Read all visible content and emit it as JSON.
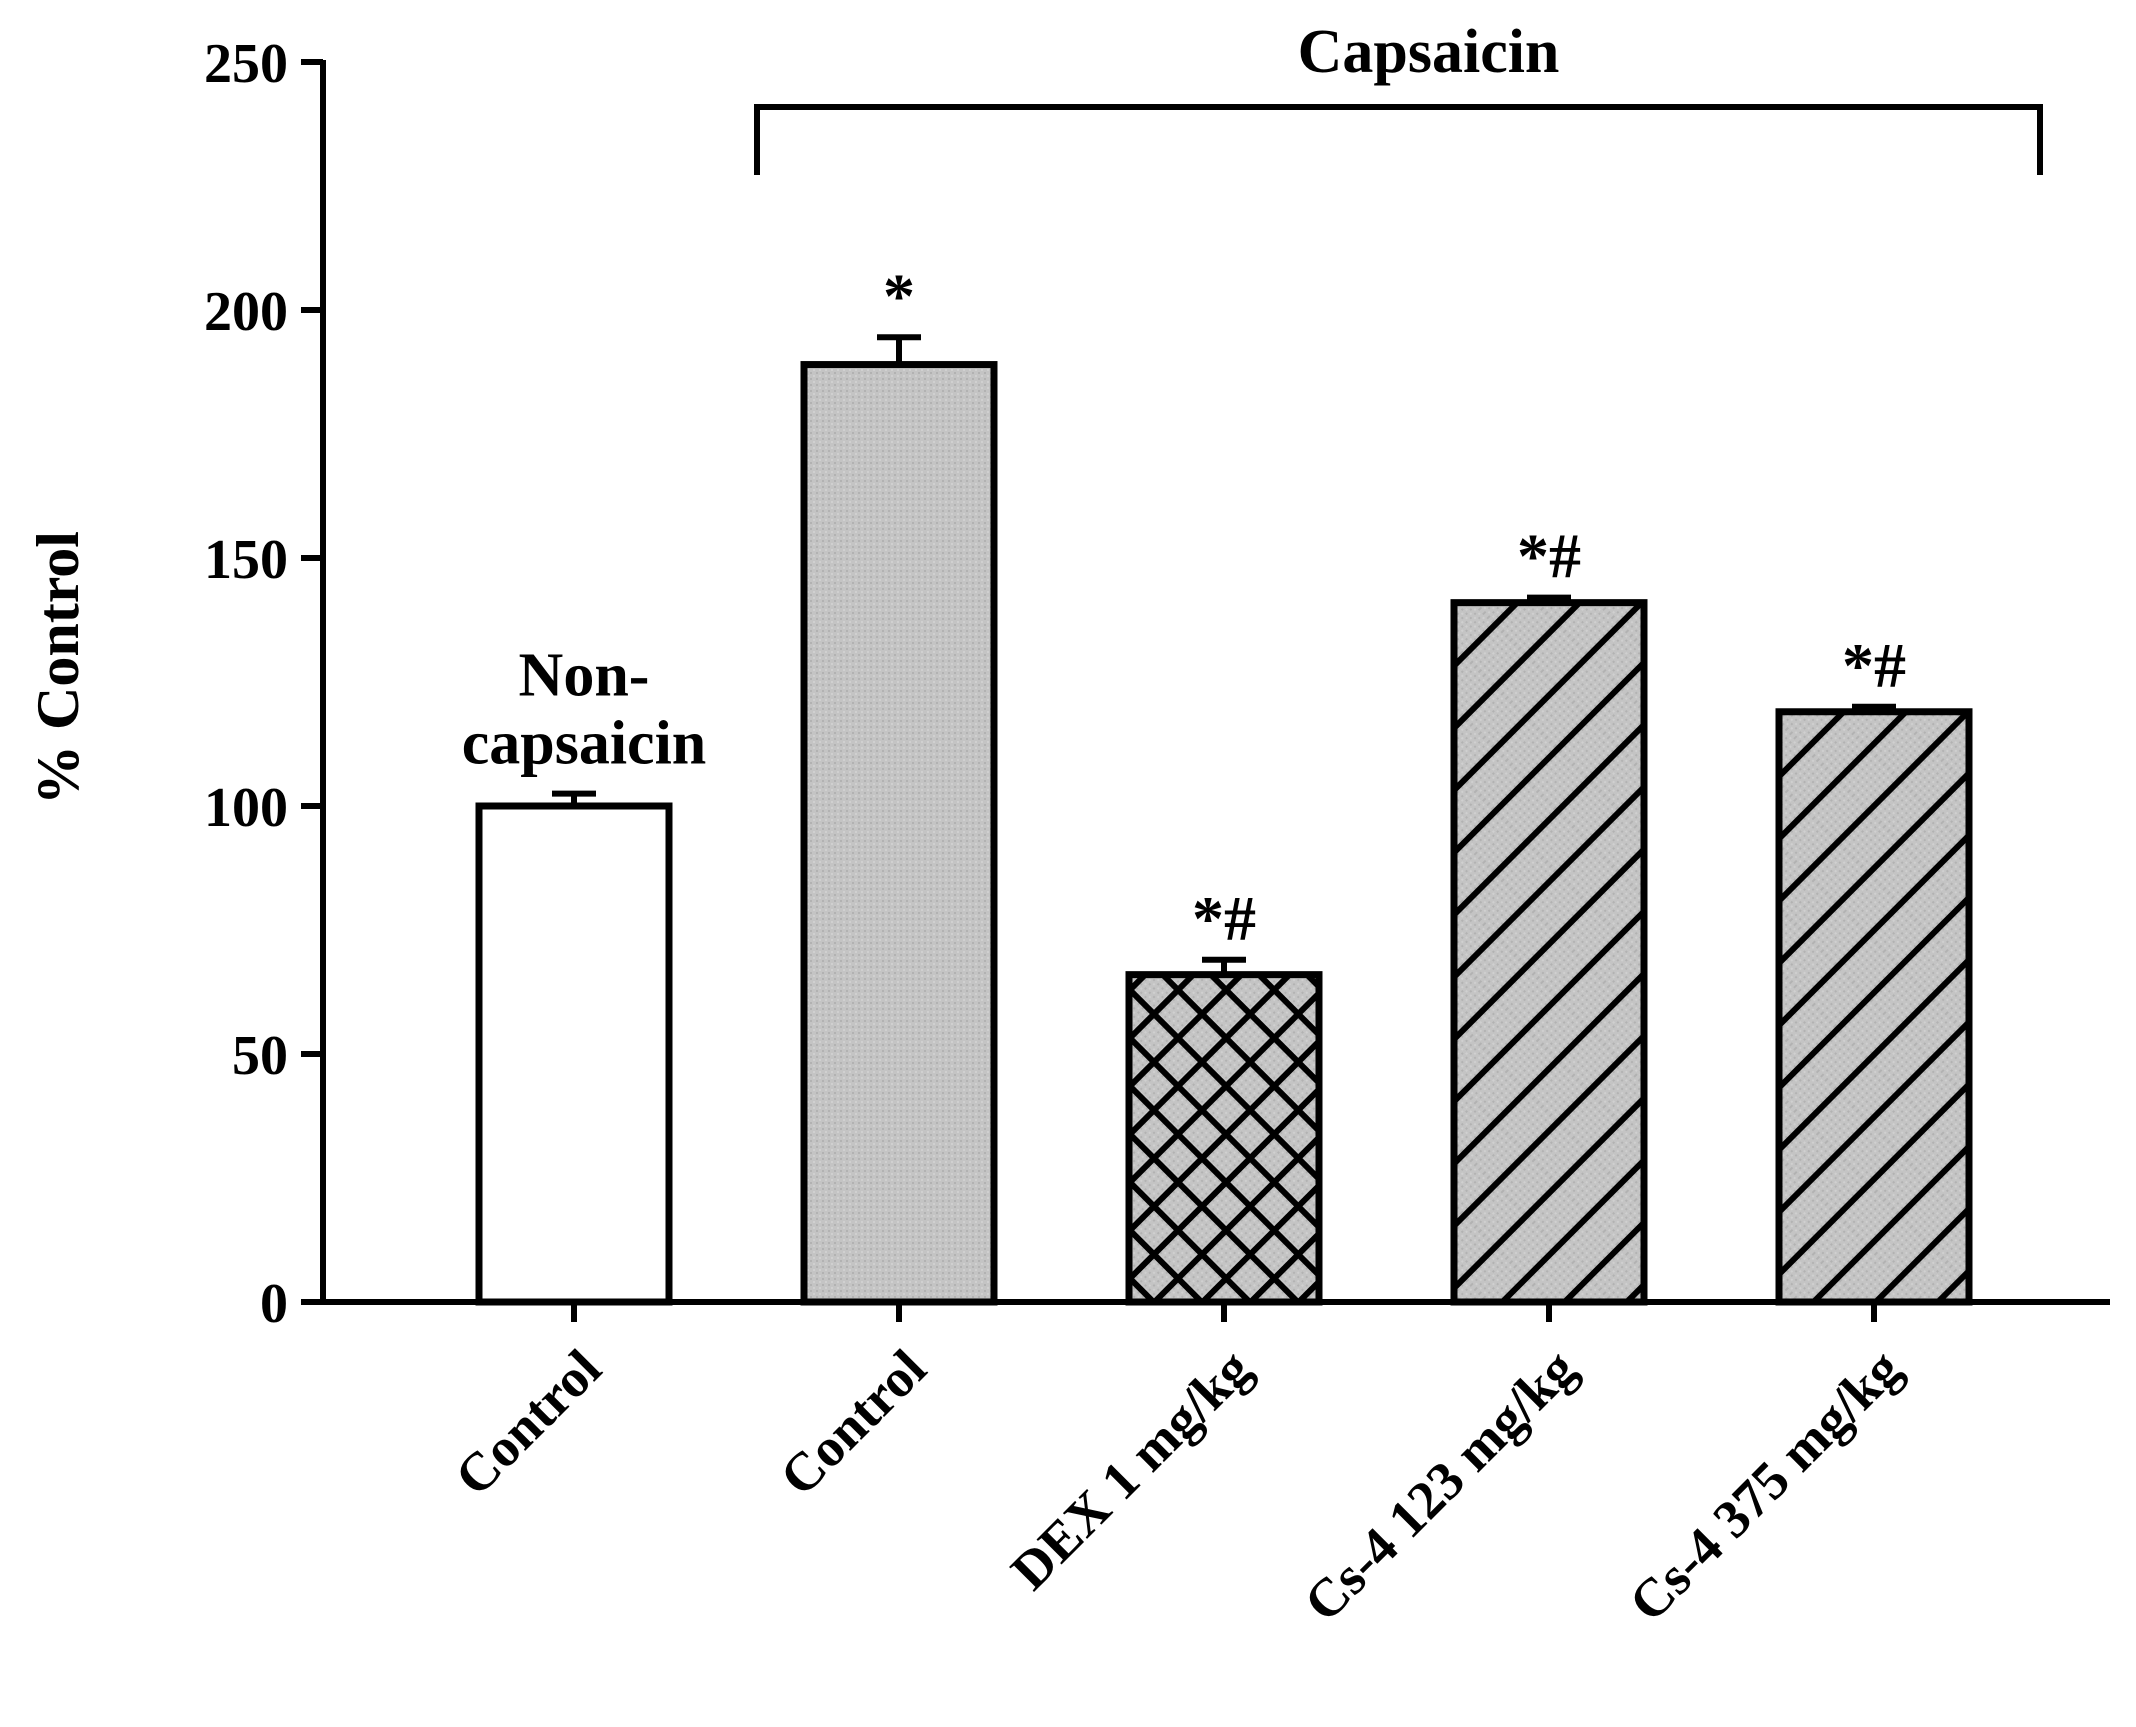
{
  "chart_data": {
    "type": "bar",
    "title": "",
    "xlabel": "",
    "ylabel": "% Control",
    "ylim": [
      0,
      250
    ],
    "yticks": [
      0,
      50,
      100,
      150,
      200,
      250
    ],
    "grid": false,
    "group_bracket": {
      "label": "Capsaicin",
      "from_index": 1,
      "to_index": 4
    },
    "categories": [
      "Control",
      "Control",
      "DEX 1 mg/kg",
      "Cs-4 123 mg/kg",
      "Cs-4 375 mg/kg"
    ],
    "values": [
      100,
      189,
      66,
      141,
      119
    ],
    "errors": [
      2.5,
      5.5,
      3,
      1,
      1
    ],
    "significance": [
      "",
      "*",
      "*#",
      "*#",
      "*#"
    ],
    "bar_labels": [
      [
        "Non-",
        "capsaicin"
      ],
      [],
      [],
      [],
      []
    ],
    "fills": [
      "white",
      "gray",
      "gray-crosshatch",
      "gray-diagonal",
      "gray-diagonal"
    ],
    "colors": {
      "gray": "#c0c0c0",
      "white": "#ffffff",
      "stroke": "#000000"
    }
  }
}
